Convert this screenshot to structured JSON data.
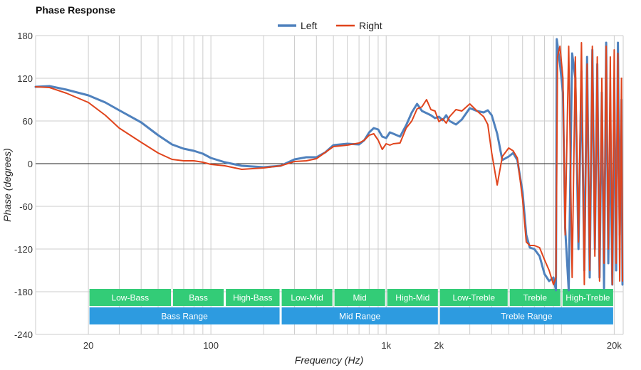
{
  "chart_data": {
    "type": "line",
    "title": "Phase Response",
    "xlabel": "Frequency (Hz)",
    "ylabel": "Phase (degrees)",
    "x_scale": "log",
    "xlim": [
      10,
      22500
    ],
    "ylim": [
      -240,
      180
    ],
    "x_ticks": [
      {
        "value": 20,
        "label": "20"
      },
      {
        "value": 100,
        "label": "100"
      },
      {
        "value": 1000,
        "label": "1k"
      },
      {
        "value": 2000,
        "label": "2k"
      },
      {
        "value": 20000,
        "label": "20k"
      }
    ],
    "y_ticks": [
      180,
      120,
      60,
      0,
      -60,
      -120,
      -180,
      -240
    ],
    "grid": true,
    "legend_position": "top-center",
    "series": [
      {
        "name": "Left",
        "color": "#4f81bd",
        "points": [
          [
            10,
            108
          ],
          [
            12,
            109
          ],
          [
            15,
            104
          ],
          [
            20,
            96
          ],
          [
            25,
            86
          ],
          [
            30,
            75
          ],
          [
            40,
            58
          ],
          [
            50,
            40
          ],
          [
            60,
            27
          ],
          [
            70,
            21
          ],
          [
            80,
            18
          ],
          [
            90,
            14
          ],
          [
            100,
            8
          ],
          [
            120,
            2
          ],
          [
            150,
            -3
          ],
          [
            200,
            -5
          ],
          [
            250,
            -3
          ],
          [
            300,
            6
          ],
          [
            350,
            9
          ],
          [
            400,
            9
          ],
          [
            450,
            16
          ],
          [
            500,
            26
          ],
          [
            600,
            28
          ],
          [
            700,
            27
          ],
          [
            750,
            33
          ],
          [
            800,
            44
          ],
          [
            850,
            50
          ],
          [
            900,
            48
          ],
          [
            950,
            38
          ],
          [
            1000,
            36
          ],
          [
            1050,
            44
          ],
          [
            1100,
            42
          ],
          [
            1200,
            38
          ],
          [
            1300,
            54
          ],
          [
            1400,
            72
          ],
          [
            1500,
            84
          ],
          [
            1600,
            74
          ],
          [
            1700,
            71
          ],
          [
            1800,
            68
          ],
          [
            1900,
            64
          ],
          [
            2000,
            66
          ],
          [
            2100,
            61
          ],
          [
            2200,
            68
          ],
          [
            2300,
            60
          ],
          [
            2500,
            55
          ],
          [
            2700,
            62
          ],
          [
            3000,
            78
          ],
          [
            3300,
            74
          ],
          [
            3600,
            72
          ],
          [
            3800,
            75
          ],
          [
            4000,
            68
          ],
          [
            4300,
            42
          ],
          [
            4600,
            5
          ],
          [
            5000,
            10
          ],
          [
            5300,
            15
          ],
          [
            5600,
            5
          ],
          [
            6000,
            -40
          ],
          [
            6300,
            -100
          ],
          [
            6600,
            -118
          ],
          [
            7000,
            -120
          ],
          [
            7500,
            -130
          ],
          [
            8000,
            -155
          ],
          [
            8500,
            -165
          ],
          [
            9000,
            -160
          ],
          [
            9300,
            -178
          ],
          [
            9400,
            175
          ],
          [
            9800,
            140
          ],
          [
            10200,
            100
          ],
          [
            10500,
            -90
          ],
          [
            11000,
            -178
          ],
          [
            11500,
            155
          ],
          [
            12000,
            120
          ],
          [
            12500,
            -120
          ],
          [
            13000,
            130
          ],
          [
            13500,
            -150
          ],
          [
            14000,
            150
          ],
          [
            14500,
            -160
          ],
          [
            15000,
            160
          ],
          [
            15500,
            -120
          ],
          [
            16000,
            140
          ],
          [
            16500,
            -160
          ],
          [
            17000,
            100
          ],
          [
            17500,
            -175
          ],
          [
            18000,
            170
          ],
          [
            18500,
            -140
          ],
          [
            19000,
            60
          ],
          [
            19500,
            -170
          ],
          [
            20000,
            120
          ],
          [
            20500,
            -150
          ],
          [
            21000,
            170
          ],
          [
            21500,
            -100
          ],
          [
            22000,
            90
          ],
          [
            22300,
            -170
          ]
        ]
      },
      {
        "name": "Right",
        "color": "#e0441c",
        "points": [
          [
            10,
            108
          ],
          [
            12,
            107
          ],
          [
            15,
            99
          ],
          [
            20,
            86
          ],
          [
            25,
            68
          ],
          [
            30,
            50
          ],
          [
            40,
            30
          ],
          [
            50,
            15
          ],
          [
            60,
            6
          ],
          [
            70,
            4
          ],
          [
            80,
            4
          ],
          [
            90,
            2
          ],
          [
            100,
            -1
          ],
          [
            120,
            -3
          ],
          [
            150,
            -8
          ],
          [
            200,
            -6
          ],
          [
            250,
            -3
          ],
          [
            300,
            3
          ],
          [
            350,
            4
          ],
          [
            400,
            7
          ],
          [
            450,
            16
          ],
          [
            500,
            24
          ],
          [
            600,
            26
          ],
          [
            700,
            29
          ],
          [
            750,
            33
          ],
          [
            800,
            40
          ],
          [
            850,
            42
          ],
          [
            900,
            33
          ],
          [
            950,
            20
          ],
          [
            1000,
            28
          ],
          [
            1050,
            26
          ],
          [
            1100,
            28
          ],
          [
            1200,
            29
          ],
          [
            1300,
            50
          ],
          [
            1400,
            60
          ],
          [
            1500,
            77
          ],
          [
            1600,
            80
          ],
          [
            1700,
            90
          ],
          [
            1800,
            76
          ],
          [
            1900,
            74
          ],
          [
            2000,
            59
          ],
          [
            2100,
            63
          ],
          [
            2200,
            57
          ],
          [
            2300,
            66
          ],
          [
            2500,
            76
          ],
          [
            2700,
            74
          ],
          [
            3000,
            84
          ],
          [
            3300,
            74
          ],
          [
            3600,
            66
          ],
          [
            3800,
            55
          ],
          [
            4000,
            15
          ],
          [
            4300,
            -30
          ],
          [
            4600,
            10
          ],
          [
            5000,
            22
          ],
          [
            5300,
            18
          ],
          [
            5600,
            8
          ],
          [
            6000,
            -50
          ],
          [
            6300,
            -110
          ],
          [
            6600,
            -115
          ],
          [
            7000,
            -115
          ],
          [
            7500,
            -118
          ],
          [
            8000,
            -135
          ],
          [
            8500,
            -150
          ],
          [
            9000,
            -170
          ],
          [
            9300,
            -160
          ],
          [
            9500,
            150
          ],
          [
            9800,
            165
          ],
          [
            10200,
            120
          ],
          [
            10500,
            -100
          ],
          [
            11000,
            165
          ],
          [
            11500,
            -160
          ],
          [
            12000,
            150
          ],
          [
            12500,
            -110
          ],
          [
            13000,
            170
          ],
          [
            13500,
            -170
          ],
          [
            14000,
            140
          ],
          [
            14500,
            -150
          ],
          [
            15000,
            165
          ],
          [
            15500,
            -130
          ],
          [
            16000,
            150
          ],
          [
            16500,
            -165
          ],
          [
            17000,
            120
          ],
          [
            17500,
            -140
          ],
          [
            18000,
            165
          ],
          [
            18500,
            -120
          ],
          [
            19000,
            150
          ],
          [
            19500,
            -170
          ],
          [
            20000,
            160
          ],
          [
            20500,
            -140
          ],
          [
            21000,
            155
          ],
          [
            21500,
            -165
          ],
          [
            22000,
            120
          ],
          [
            22300,
            -165
          ]
        ]
      }
    ],
    "bands": [
      {
        "label": "Low-Bass",
        "row": 1,
        "from": 20,
        "to": 60
      },
      {
        "label": "Bass",
        "row": 1,
        "from": 60,
        "to": 120
      },
      {
        "label": "High-Bass",
        "row": 1,
        "from": 120,
        "to": 250
      },
      {
        "label": "Low-Mid",
        "row": 1,
        "from": 250,
        "to": 500
      },
      {
        "label": "Mid",
        "row": 1,
        "from": 500,
        "to": 1000
      },
      {
        "label": "High-Mid",
        "row": 1,
        "from": 1000,
        "to": 2000
      },
      {
        "label": "Low-Treble",
        "row": 1,
        "from": 2000,
        "to": 5000
      },
      {
        "label": "Treble",
        "row": 1,
        "from": 5000,
        "to": 10000
      },
      {
        "label": "High-Treble",
        "row": 1,
        "from": 10000,
        "to": 20000
      },
      {
        "label": "Bass Range",
        "row": 2,
        "from": 20,
        "to": 250
      },
      {
        "label": "Mid Range",
        "row": 2,
        "from": 250,
        "to": 2000
      },
      {
        "label": "Treble Range",
        "row": 2,
        "from": 2000,
        "to": 20000
      }
    ],
    "band_colors": {
      "row1": "#33cc77",
      "row2": "#2d9be0"
    }
  }
}
